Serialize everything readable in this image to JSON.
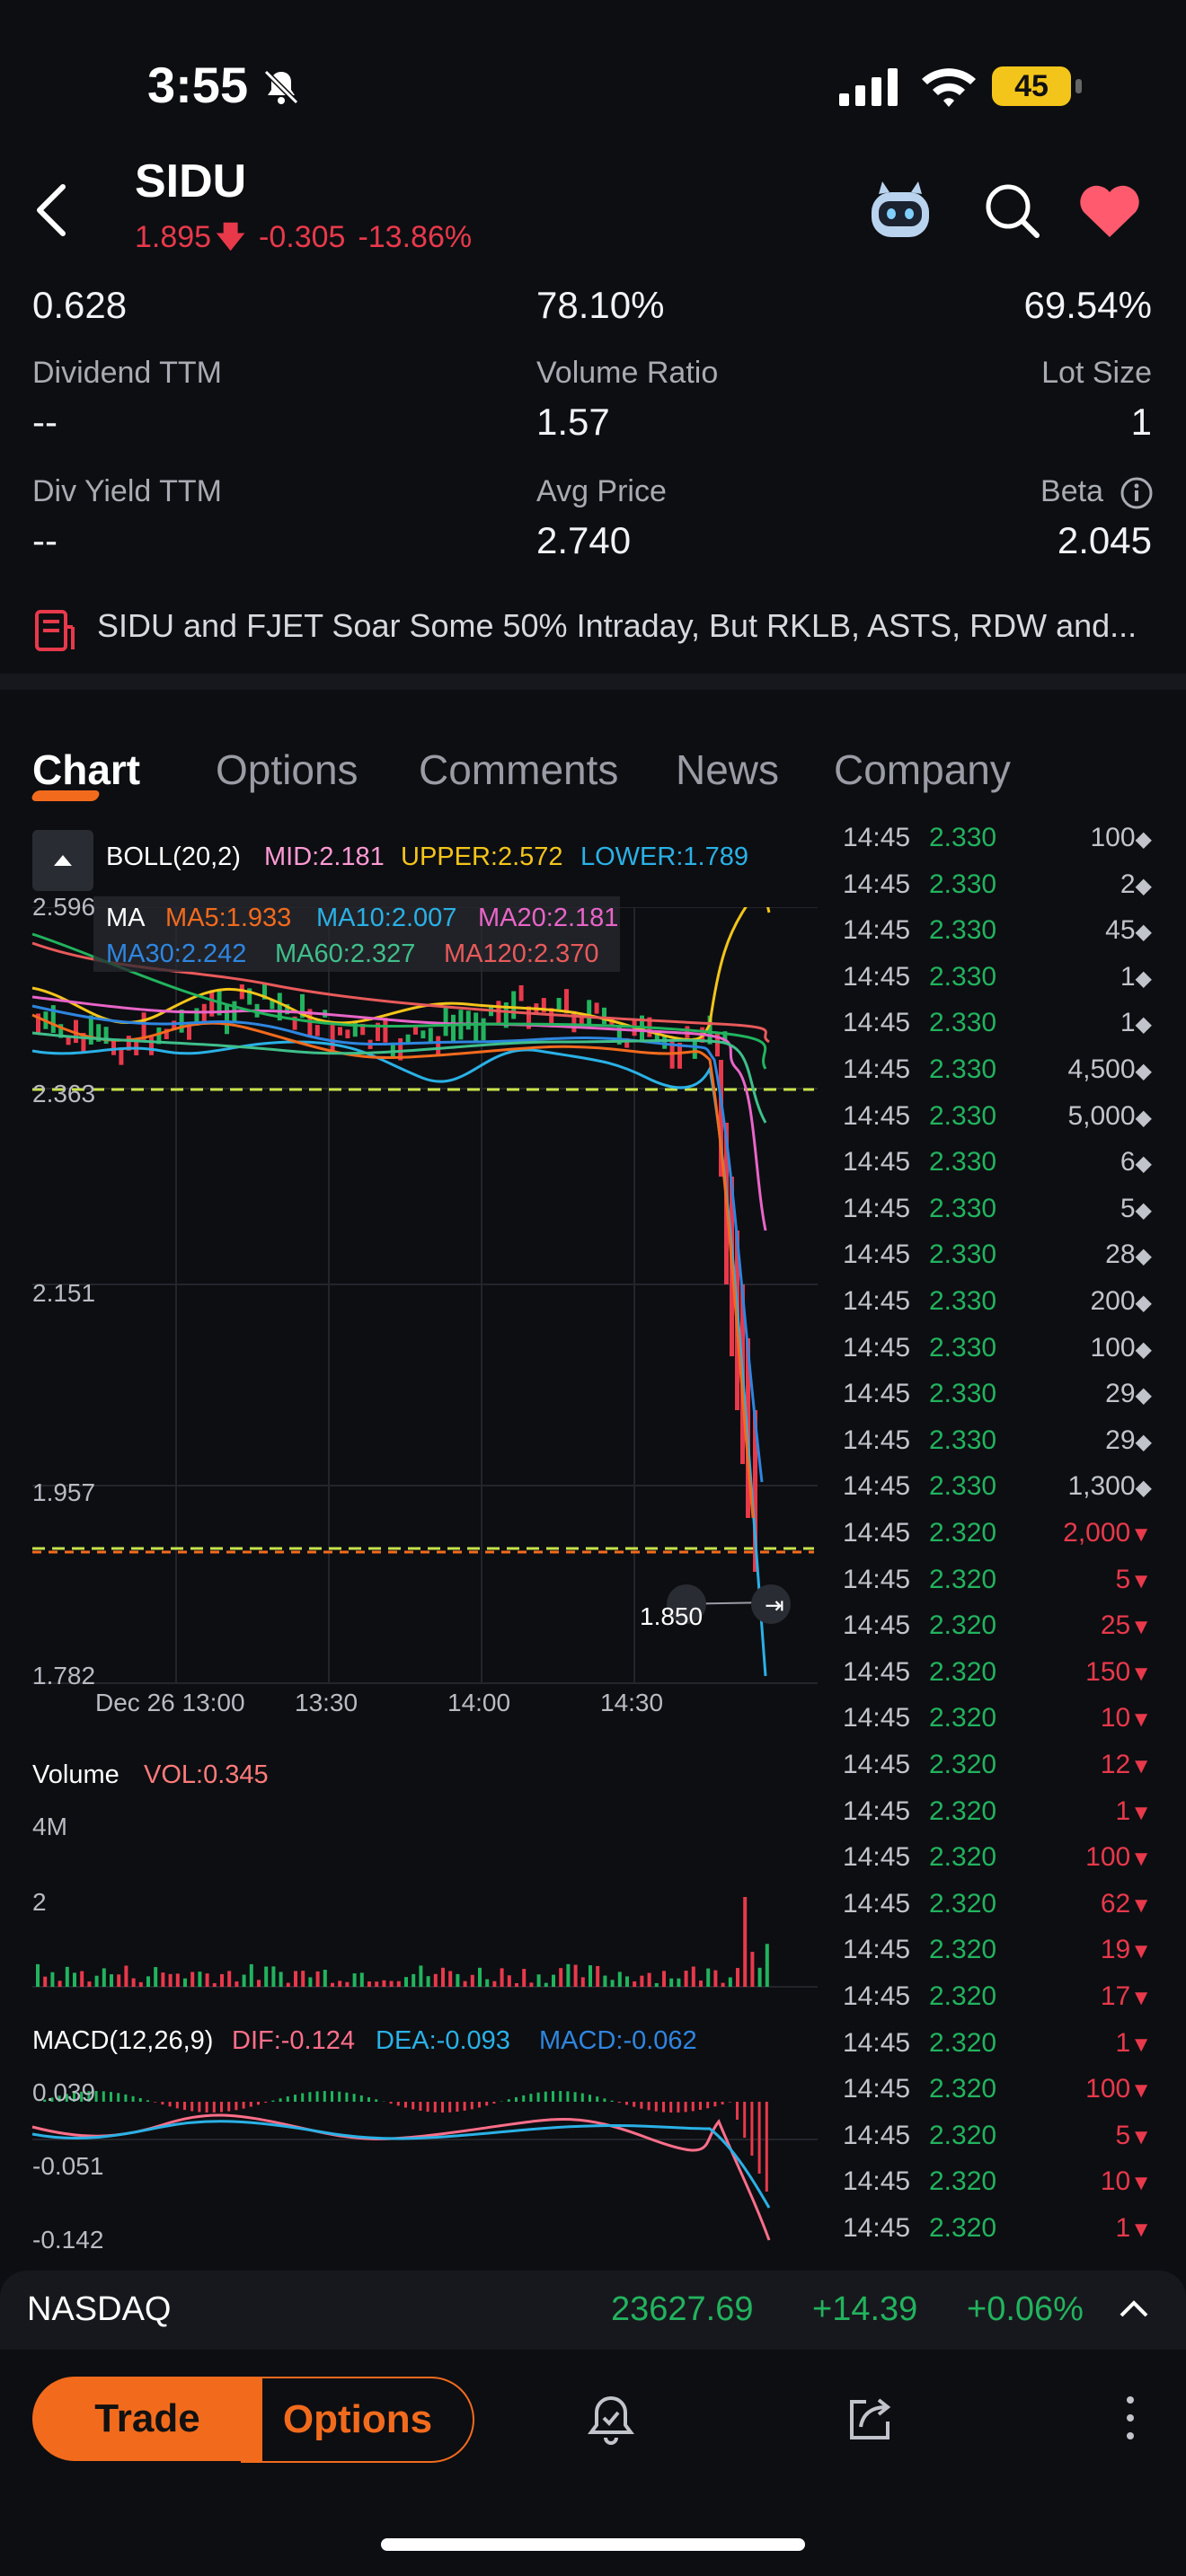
{
  "status_bar": {
    "time": "3:55",
    "battery": "45"
  },
  "header": {
    "ticker": "SIDU",
    "price": "1.895",
    "change": "-0.305",
    "change_pct": "-13.86%"
  },
  "stats": {
    "row0": {
      "left": "0.628",
      "mid": "78.10%",
      "right": "69.54%"
    },
    "row1": {
      "left_label": "Dividend TTM",
      "left_value": "--",
      "mid_label": "Volume Ratio",
      "mid_value": "1.57",
      "right_label": "Lot Size",
      "right_value": "1"
    },
    "row2": {
      "left_label": "Div Yield TTM",
      "left_value": "--",
      "mid_label": "Avg Price",
      "mid_value": "2.740",
      "right_label": "Beta",
      "right_value": "2.045"
    }
  },
  "news": {
    "headline": "SIDU and FJET Soar Some 50% Intraday, But RKLB, ASTS, RDW and..."
  },
  "tabs": [
    "Chart",
    "Options",
    "Comments",
    "News",
    "Company"
  ],
  "boll": {
    "name": "BOLL(20,2)",
    "mid": "MID:2.181",
    "upper": "UPPER:2.572",
    "lower": "LOWER:1.789"
  },
  "ma": {
    "name": "MA",
    "ma5": "MA5:1.933",
    "ma10": "MA10:2.007",
    "ma20": "MA20:2.181",
    "ma30": "MA30:2.242",
    "ma60": "MA60:2.327",
    "ma120": "MA120:2.370"
  },
  "price_axis": [
    "2.596",
    "2.363",
    "2.151",
    "1.957",
    "1.782"
  ],
  "time_axis": [
    "Dec 26 13:00",
    "13:30",
    "14:00",
    "14:30"
  ],
  "last_label": "1.850",
  "volume": {
    "name": "Volume",
    "vol": "VOL:0.345",
    "axis_top": "4M",
    "axis_mid": "2"
  },
  "macd": {
    "name": "MACD(12,26,9)",
    "dif": "DIF:-0.124",
    "dea": "DEA:-0.093",
    "macd": "MACD:-0.062",
    "axis": [
      "0.039",
      "-0.051",
      "-0.142"
    ]
  },
  "ticks": [
    {
      "time": "14:45",
      "price": "2.330",
      "vol": "100",
      "dir": "up"
    },
    {
      "time": "14:45",
      "price": "2.330",
      "vol": "2",
      "dir": "up"
    },
    {
      "time": "14:45",
      "price": "2.330",
      "vol": "45",
      "dir": "up"
    },
    {
      "time": "14:45",
      "price": "2.330",
      "vol": "1",
      "dir": "up"
    },
    {
      "time": "14:45",
      "price": "2.330",
      "vol": "1",
      "dir": "up"
    },
    {
      "time": "14:45",
      "price": "2.330",
      "vol": "4,500",
      "dir": "up"
    },
    {
      "time": "14:45",
      "price": "2.330",
      "vol": "5,000",
      "dir": "up"
    },
    {
      "time": "14:45",
      "price": "2.330",
      "vol": "6",
      "dir": "up"
    },
    {
      "time": "14:45",
      "price": "2.330",
      "vol": "5",
      "dir": "up"
    },
    {
      "time": "14:45",
      "price": "2.330",
      "vol": "28",
      "dir": "up"
    },
    {
      "time": "14:45",
      "price": "2.330",
      "vol": "200",
      "dir": "up"
    },
    {
      "time": "14:45",
      "price": "2.330",
      "vol": "100",
      "dir": "up"
    },
    {
      "time": "14:45",
      "price": "2.330",
      "vol": "29",
      "dir": "up"
    },
    {
      "time": "14:45",
      "price": "2.330",
      "vol": "29",
      "dir": "up"
    },
    {
      "time": "14:45",
      "price": "2.330",
      "vol": "1,300",
      "dir": "up"
    },
    {
      "time": "14:45",
      "price": "2.320",
      "vol": "2,000",
      "dir": "dn"
    },
    {
      "time": "14:45",
      "price": "2.320",
      "vol": "5",
      "dir": "dn"
    },
    {
      "time": "14:45",
      "price": "2.320",
      "vol": "25",
      "dir": "dn"
    },
    {
      "time": "14:45",
      "price": "2.320",
      "vol": "150",
      "dir": "dn"
    },
    {
      "time": "14:45",
      "price": "2.320",
      "vol": "10",
      "dir": "dn"
    },
    {
      "time": "14:45",
      "price": "2.320",
      "vol": "12",
      "dir": "dn"
    },
    {
      "time": "14:45",
      "price": "2.320",
      "vol": "1",
      "dir": "dn"
    },
    {
      "time": "14:45",
      "price": "2.320",
      "vol": "100",
      "dir": "dn"
    },
    {
      "time": "14:45",
      "price": "2.320",
      "vol": "62",
      "dir": "dn"
    },
    {
      "time": "14:45",
      "price": "2.320",
      "vol": "19",
      "dir": "dn"
    },
    {
      "time": "14:45",
      "price": "2.320",
      "vol": "17",
      "dir": "dn"
    },
    {
      "time": "14:45",
      "price": "2.320",
      "vol": "1",
      "dir": "dn"
    },
    {
      "time": "14:45",
      "price": "2.320",
      "vol": "100",
      "dir": "dn"
    },
    {
      "time": "14:45",
      "price": "2.320",
      "vol": "5",
      "dir": "dn"
    },
    {
      "time": "14:45",
      "price": "2.320",
      "vol": "10",
      "dir": "dn"
    },
    {
      "time": "14:45",
      "price": "2.320",
      "vol": "1",
      "dir": "dn"
    }
  ],
  "index_bar": {
    "name": "NASDAQ",
    "value": "23627.69",
    "change": "+14.39",
    "change_pct": "+0.06%"
  },
  "bottom": {
    "trade": "Trade",
    "options": "Options"
  },
  "colors": {
    "up": "#22b35e",
    "down": "#e8394b",
    "accent": "#f26b1d",
    "background": "#0d0e12"
  },
  "icons": [
    "back-arrow-icon",
    "robot-assistant-icon",
    "search-icon",
    "heart-icon",
    "news-document-icon",
    "info-icon",
    "collapse-icon",
    "alert-bell-icon",
    "share-icon",
    "more-icon",
    "chevron-up-icon"
  ]
}
